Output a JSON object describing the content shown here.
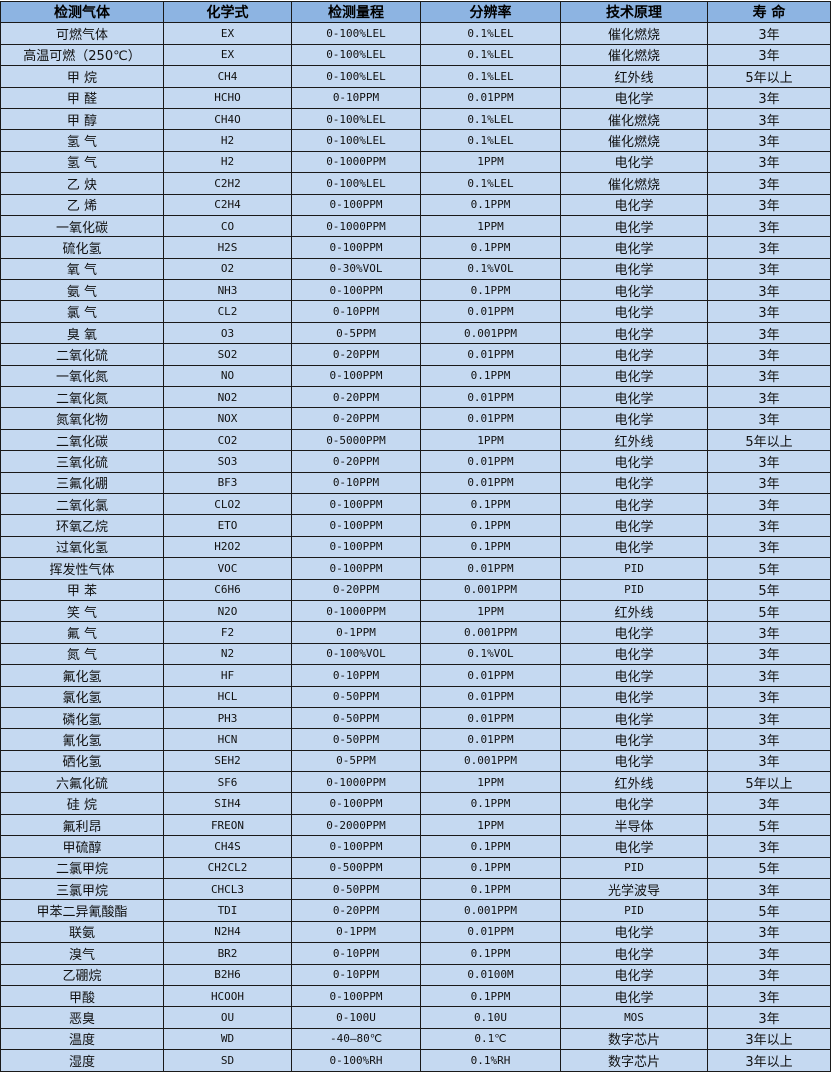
{
  "colors": {
    "header_bg": "#8db4e2",
    "row_bg": "#c5d9f1",
    "border": "#1a1a1a"
  },
  "headers": [
    "检测气体",
    "化学式",
    "检测量程",
    "分辨率",
    "技术原理",
    "寿 命"
  ],
  "rows": [
    [
      "可燃气体",
      "EX",
      "0-100%LEL",
      "0.1%LEL",
      "催化燃烧",
      "3年"
    ],
    [
      "高温可燃（250℃）",
      "EX",
      "0-100%LEL",
      "0.1%LEL",
      "催化燃烧",
      "3年"
    ],
    [
      "甲 烷",
      "CH4",
      "0-100%LEL",
      "0.1%LEL",
      "红外线",
      "5年以上"
    ],
    [
      "甲 醛",
      "HCHO",
      "0-10PPM",
      "0.01PPM",
      "电化学",
      "3年"
    ],
    [
      "甲 醇",
      "CH4O",
      "0-100%LEL",
      "0.1%LEL",
      "催化燃烧",
      "3年"
    ],
    [
      "氢 气",
      "H2",
      "0-100%LEL",
      "0.1%LEL",
      "催化燃烧",
      "3年"
    ],
    [
      "氢 气",
      "H2",
      "0-1000PPM",
      "1PPM",
      "电化学",
      "3年"
    ],
    [
      "乙 炔",
      "C2H2",
      "0-100%LEL",
      "0.1%LEL",
      "催化燃烧",
      "3年"
    ],
    [
      "乙 烯",
      "C2H4",
      "0-100PPM",
      "0.1PPM",
      "电化学",
      "3年"
    ],
    [
      "一氧化碳",
      "CO",
      "0-1000PPM",
      "1PPM",
      "电化学",
      "3年"
    ],
    [
      "硫化氢",
      "H2S",
      "0-100PPM",
      "0.1PPM",
      "电化学",
      "3年"
    ],
    [
      "氧 气",
      "O2",
      "0-30%VOL",
      "0.1%VOL",
      "电化学",
      "3年"
    ],
    [
      "氨 气",
      "NH3",
      "0-100PPM",
      "0.1PPM",
      "电化学",
      "3年"
    ],
    [
      "氯 气",
      "CL2",
      "0-10PPM",
      "0.01PPM",
      "电化学",
      "3年"
    ],
    [
      "臭 氧",
      "O3",
      "0-5PPM",
      "0.001PPM",
      "电化学",
      "3年"
    ],
    [
      "二氧化硫",
      "SO2",
      "0-20PPM",
      "0.01PPM",
      "电化学",
      "3年"
    ],
    [
      "一氧化氮",
      "NO",
      "0-100PPM",
      "0.1PPM",
      "电化学",
      "3年"
    ],
    [
      "二氧化氮",
      "NO2",
      "0-20PPM",
      "0.01PPM",
      "电化学",
      "3年"
    ],
    [
      "氮氧化物",
      "NOX",
      "0-20PPM",
      "0.01PPM",
      "电化学",
      "3年"
    ],
    [
      "二氧化碳",
      "CO2",
      "0-5000PPM",
      "1PPM",
      "红外线",
      "5年以上"
    ],
    [
      "三氧化硫",
      "SO3",
      "0-20PPM",
      "0.01PPM",
      "电化学",
      "3年"
    ],
    [
      "三氟化硼",
      "BF3",
      "0-10PPM",
      "0.01PPM",
      "电化学",
      "3年"
    ],
    [
      "二氧化氯",
      "CLO2",
      "0-100PPM",
      "0.1PPM",
      "电化学",
      "3年"
    ],
    [
      "环氧乙烷",
      "ETO",
      "0-100PPM",
      "0.1PPM",
      "电化学",
      "3年"
    ],
    [
      "过氧化氢",
      "H2O2",
      "0-100PPM",
      "0.1PPM",
      "电化学",
      "3年"
    ],
    [
      "挥发性气体",
      "VOC",
      "0-100PPM",
      "0.01PPM",
      "PID",
      "5年"
    ],
    [
      "甲 苯",
      "C6H6",
      "0-20PPM",
      "0.001PPM",
      "PID",
      "5年"
    ],
    [
      "笑 气",
      "N2O",
      "0-1000PPM",
      "1PPM",
      "红外线",
      "5年"
    ],
    [
      "氟 气",
      "F2",
      "0-1PPM",
      "0.001PPM",
      "电化学",
      "3年"
    ],
    [
      "氮 气",
      "N2",
      "0-100%VOL",
      "0.1%VOL",
      "电化学",
      "3年"
    ],
    [
      "氟化氢",
      "HF",
      "0-10PPM",
      "0.01PPM",
      "电化学",
      "3年"
    ],
    [
      "氯化氢",
      "HCL",
      "0-50PPM",
      "0.01PPM",
      "电化学",
      "3年"
    ],
    [
      "磷化氢",
      "PH3",
      "0-50PPM",
      "0.01PPM",
      "电化学",
      "3年"
    ],
    [
      "氰化氢",
      "HCN",
      "0-50PPM",
      "0.01PPM",
      "电化学",
      "3年"
    ],
    [
      "硒化氢",
      "SEH2",
      "0-5PPM",
      "0.001PPM",
      "电化学",
      "3年"
    ],
    [
      "六氟化硫",
      "SF6",
      "0-1000PPM",
      "1PPM",
      "红外线",
      "5年以上"
    ],
    [
      "硅 烷",
      "SIH4",
      "0-100PPM",
      "0.1PPM",
      "电化学",
      "3年"
    ],
    [
      "氟利昂",
      "FREON",
      "0-2000PPM",
      "1PPM",
      "半导体",
      "5年"
    ],
    [
      "甲硫醇",
      "CH4S",
      "0-100PPM",
      "0.1PPM",
      "电化学",
      "3年"
    ],
    [
      "二氯甲烷",
      "CH2CL2",
      "0-500PPM",
      "0.1PPM",
      "PID",
      "5年"
    ],
    [
      "三氯甲烷",
      "CHCL3",
      "0-50PPM",
      "0.1PPM",
      "光学波导",
      "3年"
    ],
    [
      "甲苯二异氰酸酯",
      "TDI",
      "0-20PPM",
      "0.001PPM",
      "PID",
      "5年"
    ],
    [
      "联氨",
      "N2H4",
      "0-1PPM",
      "0.01PPM",
      "电化学",
      "3年"
    ],
    [
      "溴气",
      "BR2",
      "0-10PPM",
      "0.1PPM",
      "电化学",
      "3年"
    ],
    [
      "乙硼烷",
      "B2H6",
      "0-10PPM",
      "0.0100M",
      "电化学",
      "3年"
    ],
    [
      "甲酸",
      "HCOOH",
      "0-100PPM",
      "0.1PPM",
      "电化学",
      "3年"
    ],
    [
      "恶臭",
      "OU",
      "0-100U",
      "0.10U",
      "MOS",
      "3年"
    ],
    [
      "温度",
      "WD",
      "-40—80℃",
      "0.1℃",
      "数字芯片",
      "3年以上"
    ],
    [
      "湿度",
      "SD",
      "0-100%RH",
      "0.1%RH",
      "数字芯片",
      "3年以上"
    ]
  ]
}
